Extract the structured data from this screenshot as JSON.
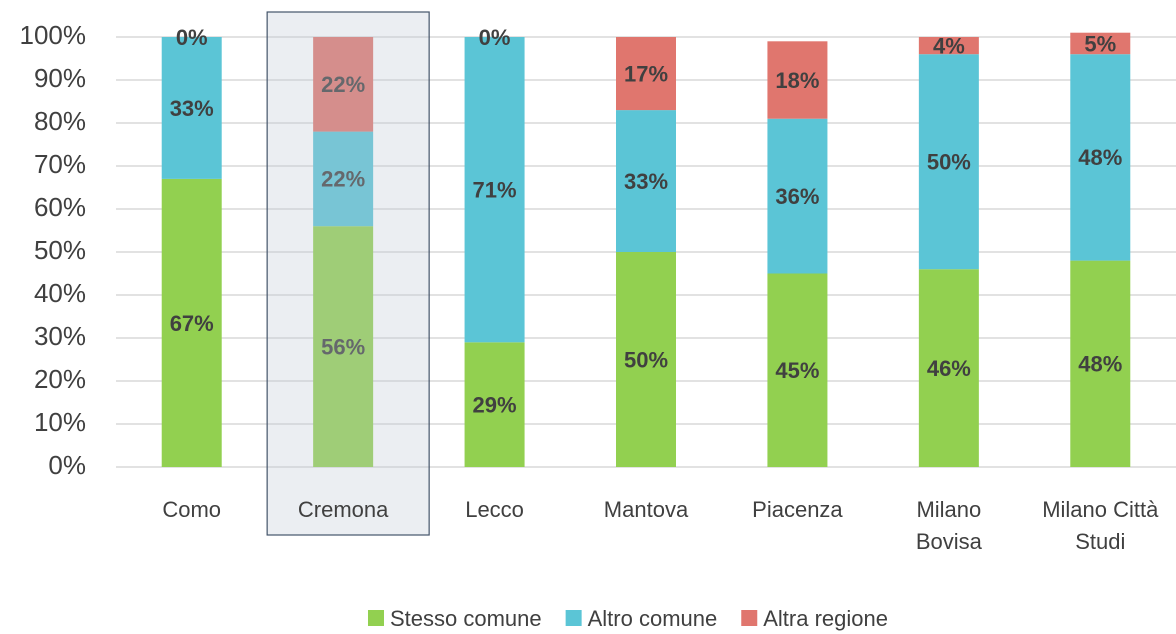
{
  "chart_data": {
    "type": "stacked_bar",
    "categories": [
      "Como",
      "Cremona",
      "Lecco",
      "Mantova",
      "Piacenza",
      "Milano\nBovisa",
      "Milano Città\nStudi"
    ],
    "series": [
      {
        "name": "Stesso comune",
        "color": "#92d050",
        "values": [
          67,
          56,
          29,
          50,
          45,
          46,
          48
        ],
        "value_labels": [
          "67%",
          "56%",
          "29%",
          "50%",
          "45%",
          "46%",
          "48%"
        ]
      },
      {
        "name": "Altro comune",
        "color": "#5bc5d6",
        "values": [
          33,
          22,
          71,
          33,
          36,
          50,
          48
        ],
        "value_labels": [
          "33%",
          "22%",
          "71%",
          "33%",
          "36%",
          "50%",
          "48%"
        ]
      },
      {
        "name": "Altra regione",
        "color": "#e0766e",
        "values": [
          0,
          22,
          0,
          17,
          18,
          4,
          5
        ],
        "value_labels": [
          "0%",
          "22%",
          "0%",
          "17%",
          "18%",
          "4%",
          "5%"
        ]
      }
    ],
    "ylim": [
      0,
      100
    ],
    "yticks": [
      {
        "value": 0,
        "label": "0%"
      },
      {
        "value": 10,
        "label": "10%"
      },
      {
        "value": 20,
        "label": "20%"
      },
      {
        "value": 30,
        "label": "30%"
      },
      {
        "value": 40,
        "label": "40%"
      },
      {
        "value": 50,
        "label": "50%"
      },
      {
        "value": 60,
        "label": "60%"
      },
      {
        "value": 70,
        "label": "70%"
      },
      {
        "value": 80,
        "label": "80%"
      },
      {
        "value": 90,
        "label": "90%"
      },
      {
        "value": 100,
        "label": "100%"
      }
    ],
    "grid": true,
    "legend": "bottom"
  }
}
